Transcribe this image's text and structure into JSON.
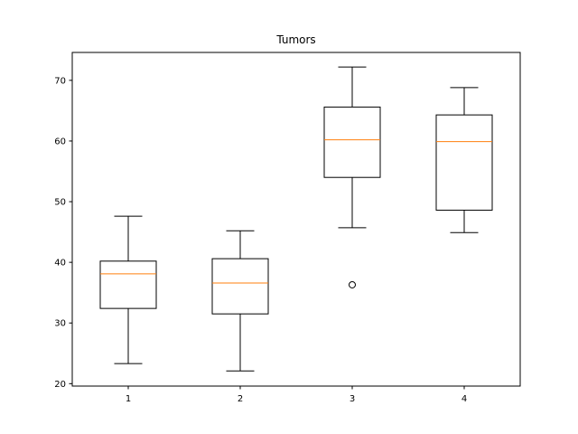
{
  "chart_data": {
    "type": "box",
    "title": "Tumors",
    "xlabel": "",
    "ylabel": "",
    "categories": [
      "1",
      "2",
      "3",
      "4"
    ],
    "ylim": [
      19.6,
      74.6
    ],
    "yticks": [
      20,
      30,
      40,
      50,
      60,
      70
    ],
    "grid": false,
    "boxes": [
      {
        "label": "1",
        "whisker_low": 23.3,
        "q1": 32.4,
        "median": 38.1,
        "q3": 40.2,
        "whisker_high": 47.6,
        "outliers": []
      },
      {
        "label": "2",
        "whisker_low": 22.1,
        "q1": 31.5,
        "median": 36.6,
        "q3": 40.6,
        "whisker_high": 45.2,
        "outliers": []
      },
      {
        "label": "3",
        "whisker_low": 45.7,
        "q1": 54.0,
        "median": 60.2,
        "q3": 65.6,
        "whisker_high": 72.2,
        "outliers": [
          36.3
        ]
      },
      {
        "label": "4",
        "whisker_low": 44.9,
        "q1": 48.6,
        "median": 59.9,
        "q3": 64.3,
        "whisker_high": 68.8,
        "outliers": []
      }
    ],
    "colors": {
      "box": "#000000",
      "median": "#ff7f0e",
      "outlier": "#000000"
    }
  }
}
